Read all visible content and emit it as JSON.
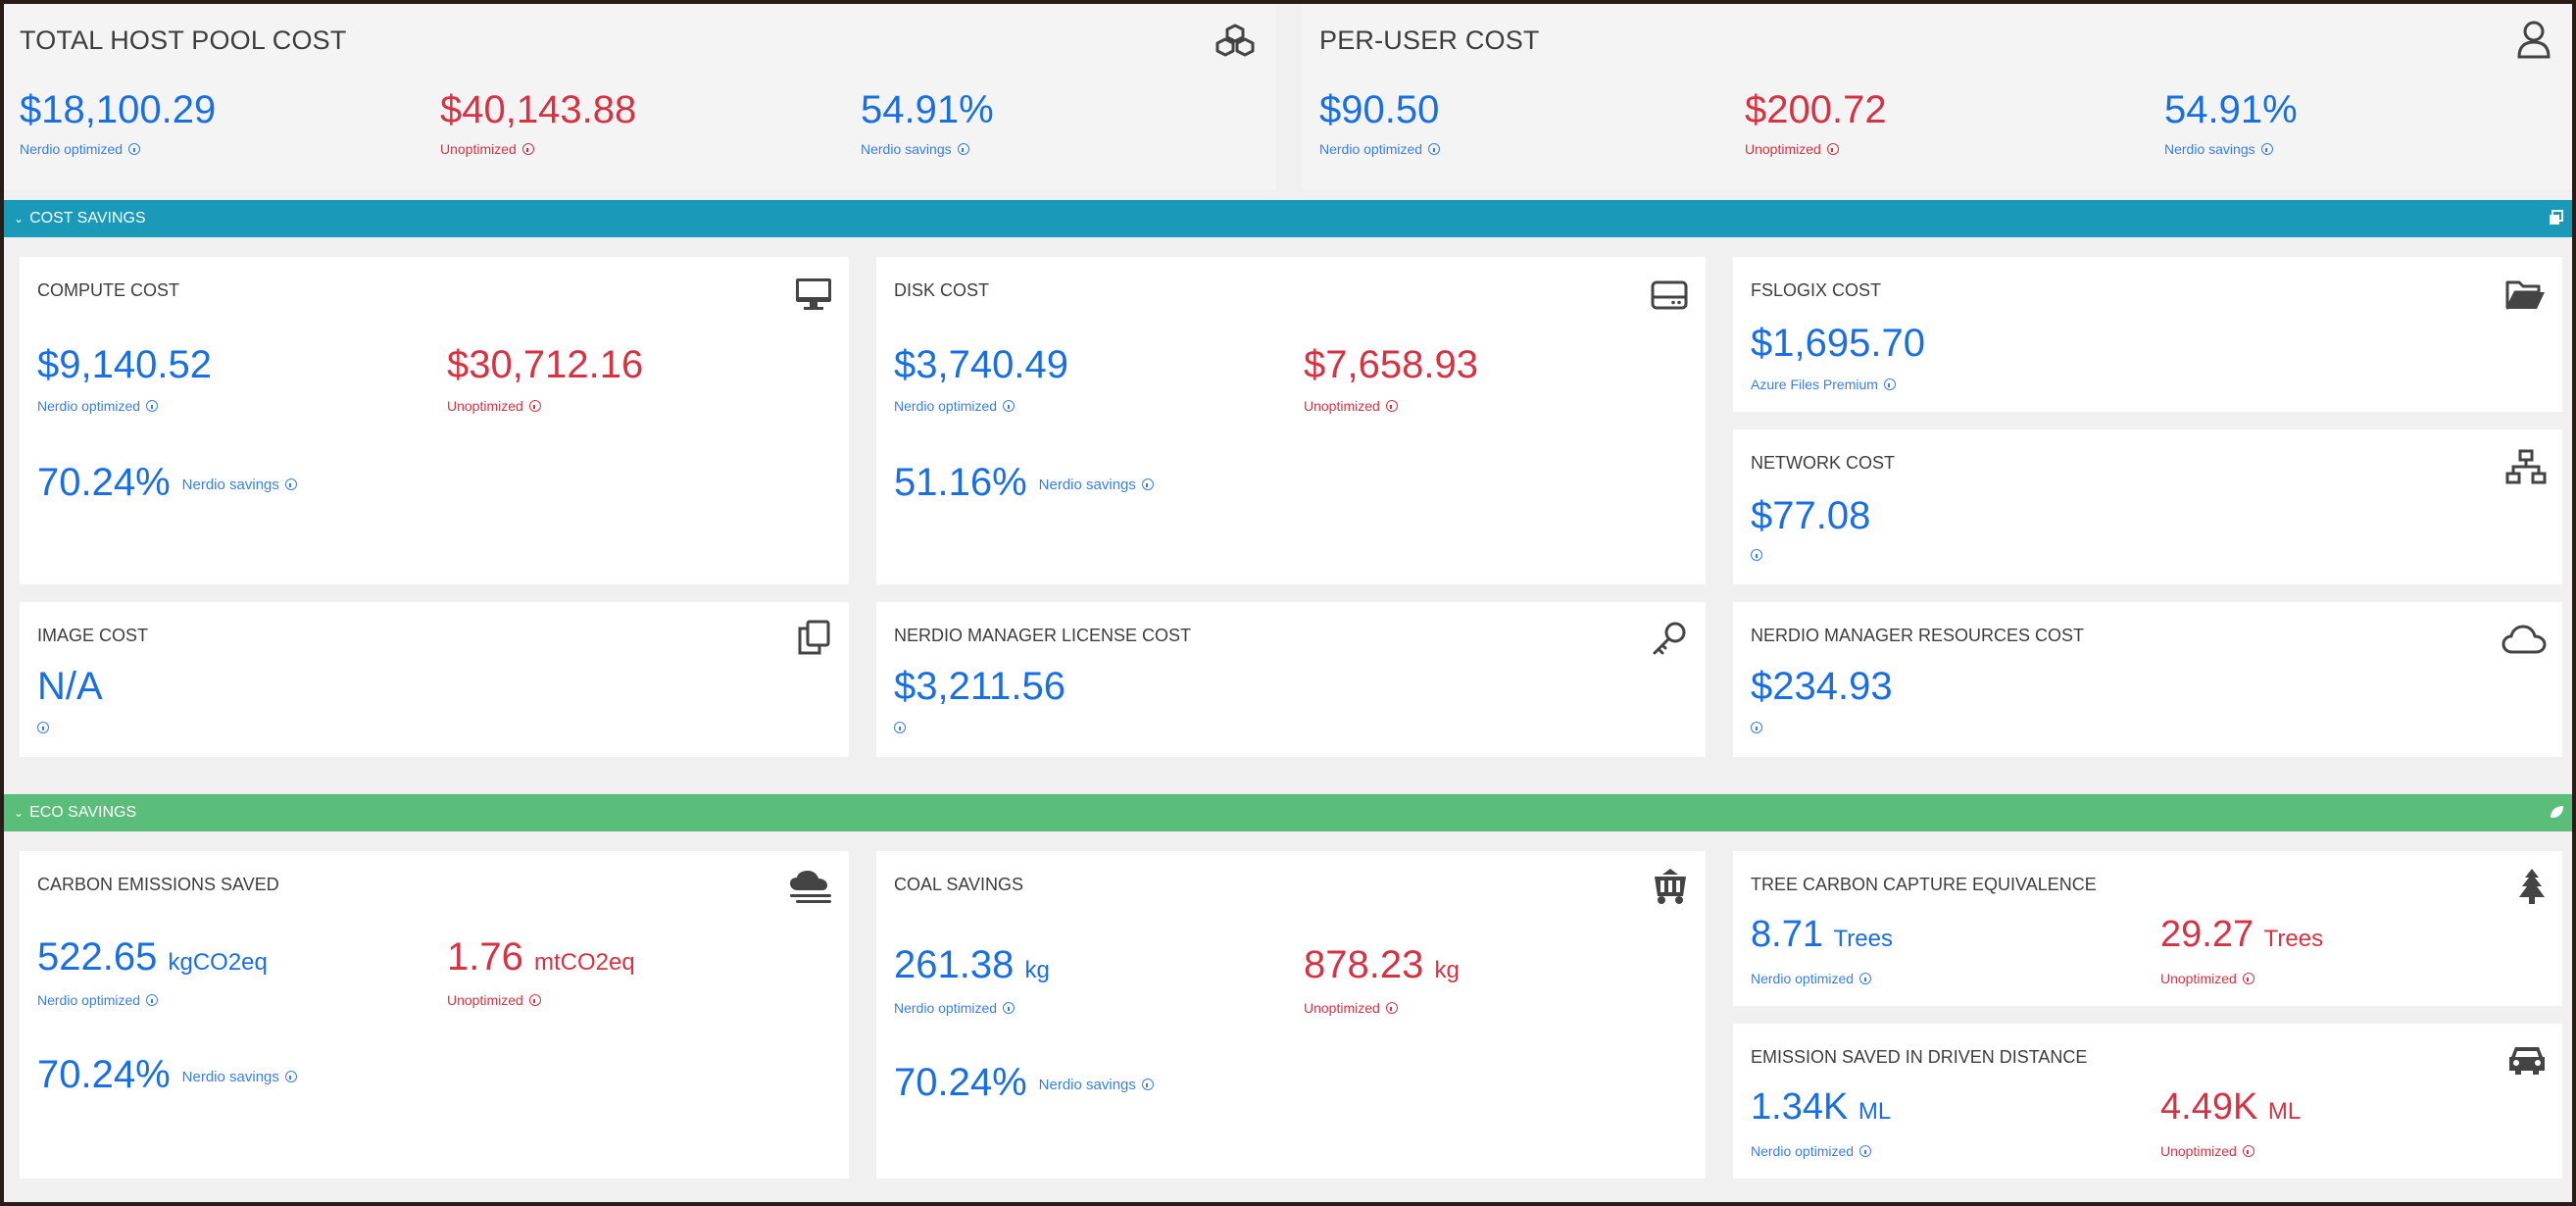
{
  "top": {
    "host_pool": {
      "title": "TOTAL HOST POOL COST",
      "optimized": "$18,100.29",
      "optimized_label": "Nerdio optimized",
      "unoptimized": "$40,143.88",
      "unoptimized_label": "Unoptimized",
      "savings": "54.91%",
      "savings_label": "Nerdio savings",
      "icon": "cubes-icon"
    },
    "per_user": {
      "title": "PER-USER COST",
      "optimized": "$90.50",
      "optimized_label": "Nerdio optimized",
      "unoptimized": "$200.72",
      "unoptimized_label": "Unoptimized",
      "savings": "54.91%",
      "savings_label": "Nerdio savings",
      "icon": "user-icon"
    }
  },
  "cost_savings": {
    "label": "COST SAVINGS",
    "color": "#1a9ab8",
    "compute": {
      "title": "COMPUTE COST",
      "optimized": "$9,140.52",
      "optimized_label": "Nerdio optimized",
      "unoptimized": "$30,712.16",
      "unoptimized_label": "Unoptimized",
      "savings": "70.24%",
      "savings_label": "Nerdio savings"
    },
    "disk": {
      "title": "DISK COST",
      "optimized": "$3,740.49",
      "optimized_label": "Nerdio optimized",
      "unoptimized": "$7,658.93",
      "unoptimized_label": "Unoptimized",
      "savings": "51.16%",
      "savings_label": "Nerdio savings"
    },
    "fslogix": {
      "title": "FSLOGIX COST",
      "value": "$1,695.70",
      "value_label": "Azure Files Premium"
    },
    "network": {
      "title": "NETWORK COST",
      "value": "$77.08"
    },
    "image": {
      "title": "IMAGE COST",
      "value": "N/A"
    },
    "license": {
      "title": "NERDIO MANAGER LICENSE COST",
      "value": "$3,211.56"
    },
    "resources": {
      "title": "NERDIO MANAGER RESOURCES COST",
      "value": "$234.93"
    }
  },
  "eco_savings": {
    "label": "ECO SAVINGS",
    "color": "#5bbd7a",
    "carbon": {
      "title": "CARBON EMISSIONS SAVED",
      "optimized": "522.65",
      "optimized_unit": "kgCO2eq",
      "optimized_label": "Nerdio optimized",
      "unoptimized": "1.76",
      "unoptimized_unit": "mtCO2eq",
      "unoptimized_label": "Unoptimized",
      "savings": "70.24%",
      "savings_label": "Nerdio savings"
    },
    "coal": {
      "title": "COAL SAVINGS",
      "optimized": "261.38",
      "optimized_unit": "kg",
      "optimized_label": "Nerdio optimized",
      "unoptimized": "878.23",
      "unoptimized_unit": "kg",
      "unoptimized_label": "Unoptimized",
      "savings": "70.24%",
      "savings_label": "Nerdio savings"
    },
    "tree": {
      "title": "TREE CARBON CAPTURE EQUIVALENCE",
      "optimized": "8.71",
      "optimized_unit": "Trees",
      "optimized_label": "Nerdio optimized",
      "unoptimized": "29.27",
      "unoptimized_unit": "Trees",
      "unoptimized_label": "Unoptimized"
    },
    "distance": {
      "title": "EMISSION SAVED IN DRIVEN DISTANCE",
      "optimized": "1.34K",
      "optimized_unit": "ML",
      "optimized_label": "Nerdio optimized",
      "unoptimized": "4.49K",
      "unoptimized_unit": "ML",
      "unoptimized_label": "Unoptimized"
    }
  }
}
